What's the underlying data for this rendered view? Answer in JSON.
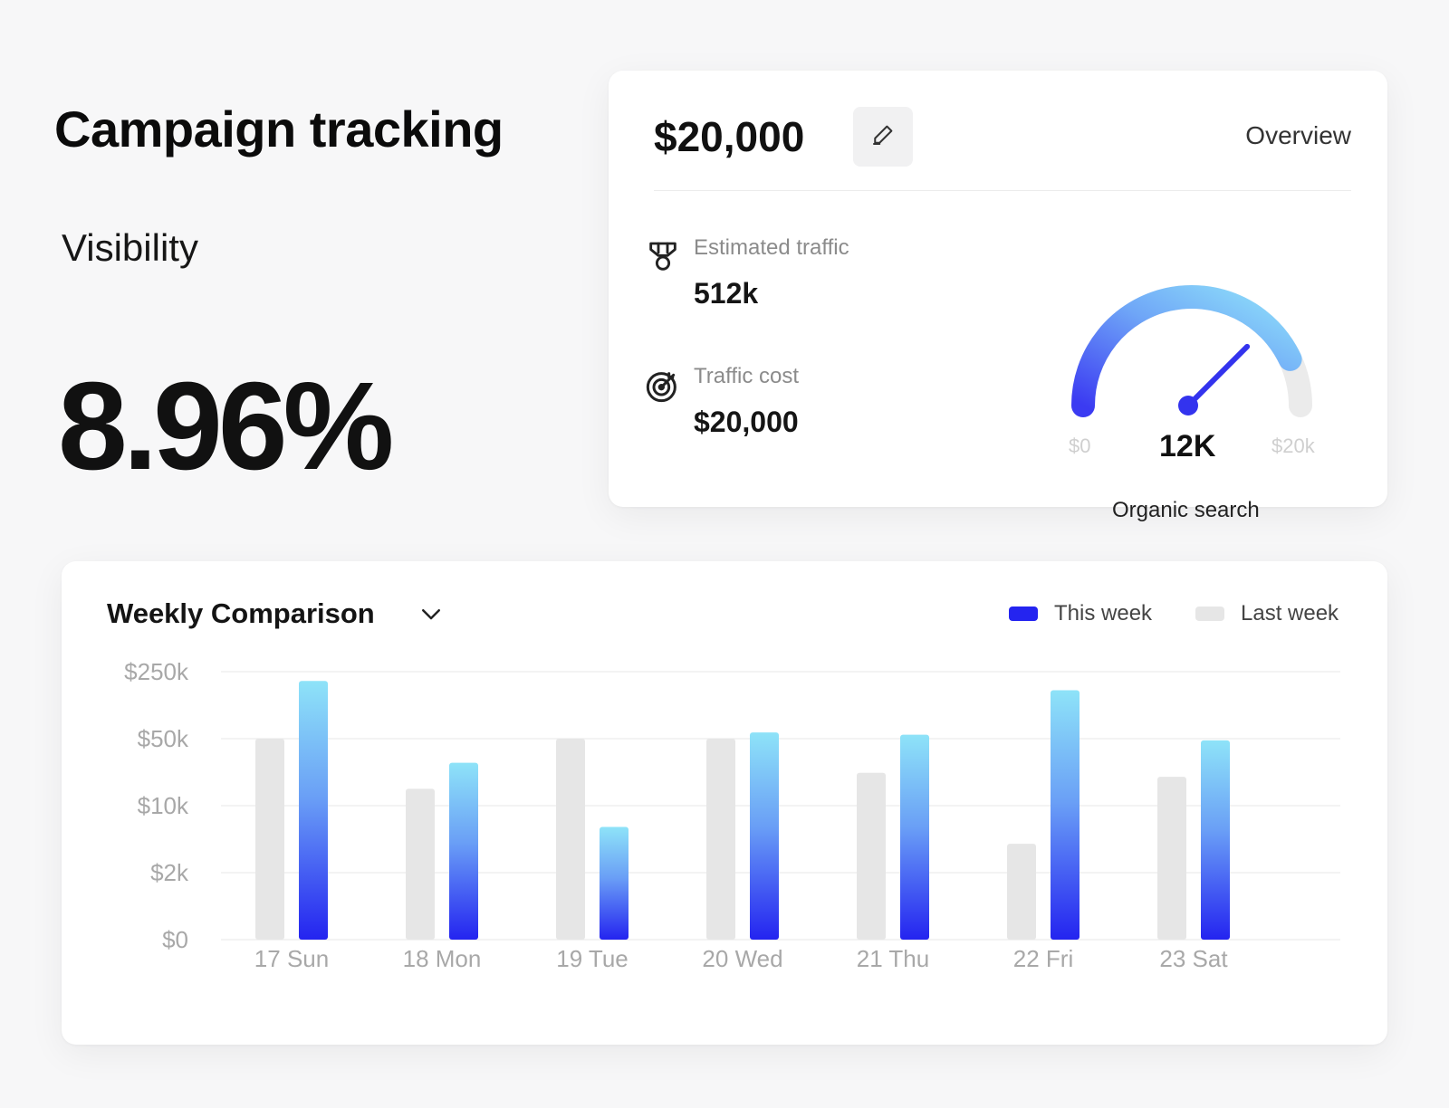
{
  "header": {
    "title": "Campaign tracking",
    "visibility_label": "Visibility",
    "visibility_value": "8.96%"
  },
  "overview": {
    "budget": "$20,000",
    "edit_icon": "pencil-icon",
    "overview_link": "Overview",
    "metrics": [
      {
        "icon": "medal-icon",
        "label": "Estimated traffic",
        "value": "512k"
      },
      {
        "icon": "target-icon",
        "label": "Traffic cost",
        "value": "$20,000"
      }
    ],
    "gauge": {
      "min_label": "$0",
      "max_label": "$20k",
      "value_label": "12K",
      "caption": "Organic search",
      "level": 0.86
    }
  },
  "colors": {
    "this_week_top": "#8ee3f8",
    "this_week_bottom": "#2424f0",
    "last_week": "#e6e6e6",
    "grid": "#efefef"
  },
  "chart": {
    "title": "Weekly Comparison",
    "dropdown_icon": "chevron-down-icon",
    "legend": [
      {
        "name": "This week",
        "color": "#2424f0"
      },
      {
        "name": "Last week",
        "color": "#e6e6e6"
      }
    ]
  },
  "chart_data": {
    "type": "bar",
    "y_scale": "categorical-nonlinear",
    "y_ticks": [
      "$0",
      "$2k",
      "$10k",
      "$50k",
      "$250k"
    ],
    "categories": [
      "17 Sun",
      "18 Mon",
      "19 Tue",
      "20 Wed",
      "21 Thu",
      "22 Fri",
      "23 Sat"
    ],
    "series": [
      {
        "name": "Last week",
        "values": [
          50000,
          15000,
          50000,
          50000,
          22000,
          4000,
          20000
        ]
      },
      {
        "name": "This week",
        "values": [
          200000,
          28000,
          6000,
          58000,
          55000,
          160000,
          48000
        ]
      }
    ],
    "grid": true,
    "legend_position": "top-right"
  }
}
